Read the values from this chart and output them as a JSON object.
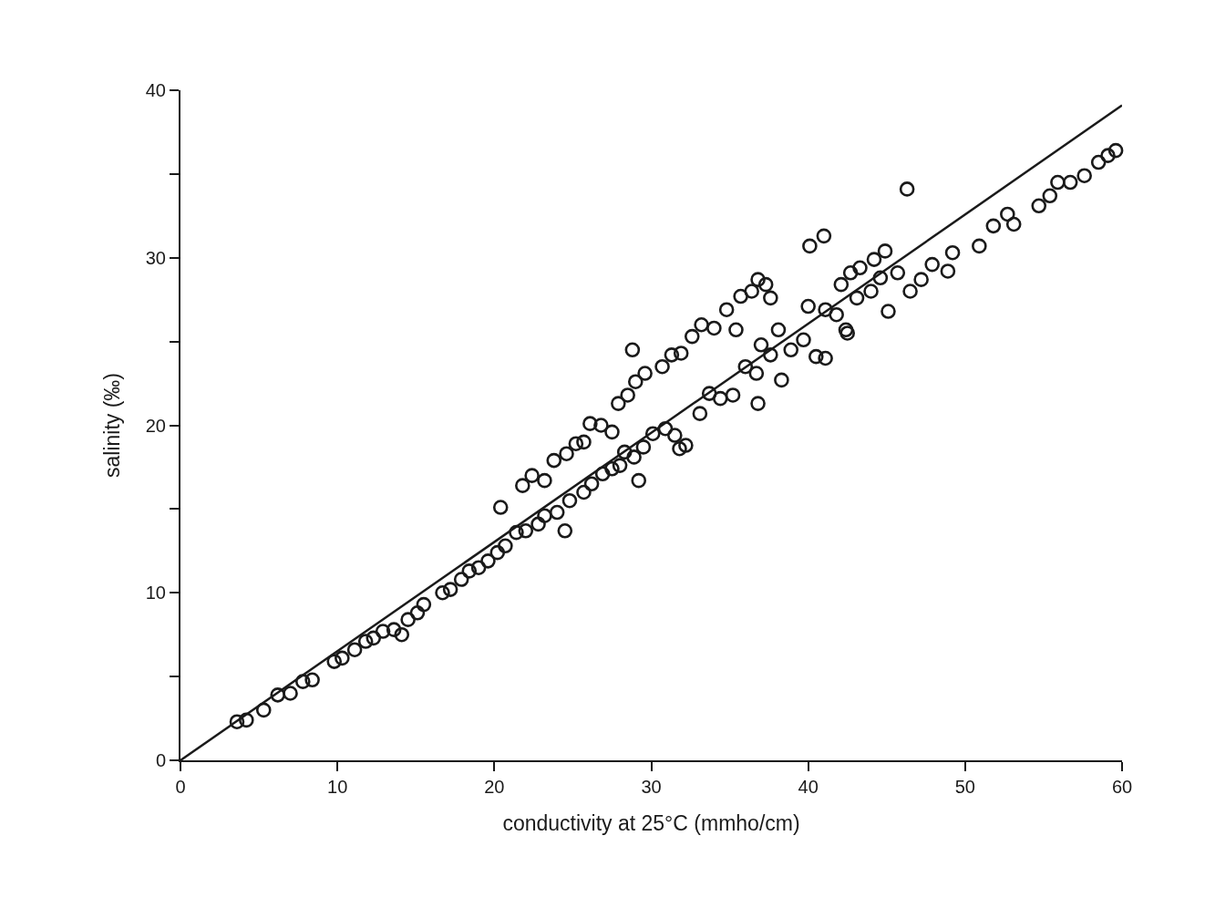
{
  "chart_data": {
    "type": "scatter",
    "xlabel": "conductivity at 25°C (mmho/cm)",
    "ylabel": "salinity (‰)",
    "xlim": [
      0,
      60
    ],
    "ylim": [
      0,
      40
    ],
    "xticks": [
      0,
      10,
      20,
      30,
      40,
      50,
      60
    ],
    "yticks": [
      0,
      {
        "value": 5,
        "label": null
      },
      10,
      {
        "value": 15,
        "label": null
      },
      20,
      {
        "value": 25,
        "label": null
      },
      30,
      {
        "value": 35,
        "label": null
      },
      40
    ],
    "marker": "circle",
    "series": [
      {
        "color": "#1a1a1a",
        "x": [
          3.6,
          4.2,
          5.3,
          6.2,
          7.0,
          7.8,
          8.4,
          9.8,
          10.3,
          11.1,
          11.8,
          12.3,
          12.9,
          13.6,
          14.1,
          14.5,
          15.1,
          15.5,
          16.7,
          17.2,
          17.9,
          18.4,
          19.0,
          19.6,
          20.2,
          20.4,
          20.7,
          21.4,
          22.0,
          22.8,
          23.2,
          24.0,
          24.5,
          24.8,
          25.7,
          26.2,
          26.9,
          27.5,
          28.0,
          28.3,
          28.9,
          29.2,
          29.5,
          30.1,
          30.9,
          31.5,
          31.8,
          32.2,
          33.1,
          33.7,
          34.4,
          35.2,
          36.0,
          36.7,
          37.0,
          36.8,
          37.6,
          38.1,
          38.3,
          38.9,
          39.7,
          40.5,
          41.1,
          41.8,
          42.4,
          42.5,
          43.1,
          44.0,
          44.6,
          45.1,
          45.7,
          46.5,
          47.2,
          47.9,
          48.9,
          49.2,
          50.9,
          51.8,
          52.7,
          53.1,
          54.7,
          55.4,
          55.9,
          56.7,
          57.6,
          58.5,
          59.1,
          59.6,
          21.8,
          22.4,
          23.2,
          23.8,
          24.6,
          25.2,
          25.7,
          26.1,
          26.8,
          27.5,
          27.9,
          28.5,
          28.8,
          29.0,
          29.6,
          30.7,
          31.3,
          31.9,
          32.6,
          33.2,
          34.0,
          34.8,
          35.4,
          35.7,
          36.4,
          36.8,
          37.3,
          37.6,
          40.1,
          40.0,
          41.0,
          41.1,
          42.1,
          42.7,
          43.3,
          44.2,
          44.9,
          46.3
        ],
        "values": [
          2.3,
          2.4,
          3.0,
          3.9,
          4.0,
          4.7,
          4.8,
          5.9,
          6.1,
          6.6,
          7.1,
          7.3,
          7.7,
          7.8,
          7.5,
          8.4,
          8.8,
          9.3,
          10.0,
          10.2,
          10.8,
          11.3,
          11.5,
          11.9,
          12.4,
          15.1,
          12.8,
          13.6,
          13.7,
          14.1,
          14.6,
          14.8,
          13.7,
          15.5,
          16.0,
          16.5,
          17.1,
          17.4,
          17.6,
          18.4,
          18.1,
          16.7,
          18.7,
          19.5,
          19.8,
          19.4,
          18.6,
          18.8,
          20.7,
          21.9,
          21.6,
          21.8,
          23.5,
          23.1,
          24.8,
          21.3,
          24.2,
          25.7,
          22.7,
          24.5,
          25.1,
          24.1,
          26.9,
          26.6,
          25.7,
          25.5,
          27.6,
          28.0,
          28.8,
          26.8,
          29.1,
          28.0,
          28.7,
          29.6,
          29.2,
          30.3,
          30.7,
          31.9,
          32.6,
          32.0,
          33.1,
          33.7,
          34.5,
          34.5,
          34.9,
          35.7,
          36.1,
          36.4,
          16.4,
          17.0,
          16.7,
          17.9,
          18.3,
          18.9,
          19.0,
          20.1,
          20.0,
          19.6,
          21.3,
          21.8,
          24.5,
          22.6,
          23.1,
          23.5,
          24.2,
          24.3,
          25.3,
          26.0,
          25.8,
          26.9,
          25.7,
          27.7,
          28.0,
          28.7,
          28.4,
          27.6,
          30.7,
          27.1,
          31.3,
          24.0,
          28.4,
          29.1,
          29.4,
          29.9,
          30.4,
          34.1
        ]
      },
      {
        "type": "line",
        "color": "#1a1a1a",
        "x": [
          0,
          60
        ],
        "values": [
          0,
          39.1
        ],
        "marker": "none",
        "line_style": "solid"
      }
    ]
  }
}
